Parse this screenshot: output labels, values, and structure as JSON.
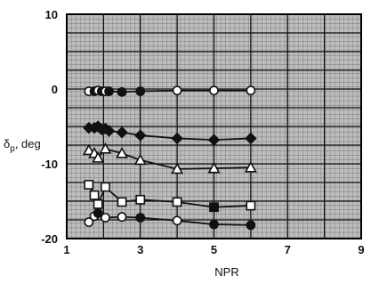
{
  "chart_data": {
    "type": "scatter",
    "xlabel": "NPR",
    "ylabel": "δp, deg",
    "ylabel_parts": {
      "main": "δ",
      "sub": "p",
      "unit": ", deg"
    },
    "xlim": [
      1,
      9
    ],
    "ylim": [
      -20,
      10
    ],
    "x_ticks": [
      1,
      3,
      5,
      7,
      9
    ],
    "y_ticks": [
      -20,
      -10,
      0,
      10
    ],
    "grid": true,
    "legend": "none",
    "series": [
      {
        "marker": "circle",
        "fill": "mixed",
        "x": [
          1.6,
          1.75,
          1.85,
          1.95,
          2.05,
          2.15,
          2.5,
          3.0,
          4.0,
          5.0,
          6.0
        ],
        "y": [
          -0.3,
          -0.3,
          -0.2,
          -0.3,
          -0.3,
          -0.3,
          -0.4,
          -0.3,
          -0.2,
          -0.2,
          -0.2
        ],
        "filled": [
          false,
          true,
          false,
          true,
          false,
          true,
          true,
          true,
          false,
          false,
          false
        ]
      },
      {
        "marker": "diamond",
        "fill": "mixed",
        "x": [
          1.6,
          1.75,
          1.85,
          1.95,
          2.05,
          2.15,
          2.5,
          3.0,
          4.0,
          5.0,
          6.0
        ],
        "y": [
          -5.2,
          -5.2,
          -5.0,
          -5.4,
          -5.3,
          -5.6,
          -5.8,
          -6.2,
          -6.6,
          -6.8,
          -6.6
        ],
        "filled": [
          true,
          true,
          true,
          true,
          true,
          true,
          true,
          true,
          true,
          true,
          true
        ]
      },
      {
        "marker": "triangle",
        "fill": "open",
        "x": [
          1.6,
          1.75,
          1.85,
          2.05,
          2.5,
          3.0,
          4.0,
          5.0,
          6.0
        ],
        "y": [
          -8.2,
          -8.6,
          -9.2,
          -8.0,
          -8.6,
          -9.5,
          -10.7,
          -10.6,
          -10.5
        ],
        "filled": [
          false,
          false,
          false,
          false,
          false,
          false,
          false,
          false,
          false
        ]
      },
      {
        "marker": "square",
        "fill": "mixed",
        "x": [
          1.6,
          1.75,
          1.85,
          2.05,
          2.5,
          3.0,
          4.0,
          5.0,
          6.0
        ],
        "y": [
          -12.8,
          -14.2,
          -15.4,
          -13.1,
          -15.1,
          -14.8,
          -15.1,
          -15.8,
          -15.6
        ],
        "filled": [
          false,
          false,
          false,
          false,
          false,
          false,
          false,
          true,
          false
        ]
      },
      {
        "marker": "circle",
        "fill": "mixed",
        "x": [
          1.6,
          1.75,
          1.85,
          2.05,
          2.5,
          3.0,
          4.0,
          5.0,
          6.0
        ],
        "y": [
          -17.8,
          -17.0,
          -16.6,
          -17.2,
          -17.1,
          -17.2,
          -17.6,
          -18.1,
          -18.2
        ],
        "filled": [
          false,
          false,
          true,
          false,
          false,
          true,
          false,
          true,
          true
        ]
      }
    ]
  }
}
